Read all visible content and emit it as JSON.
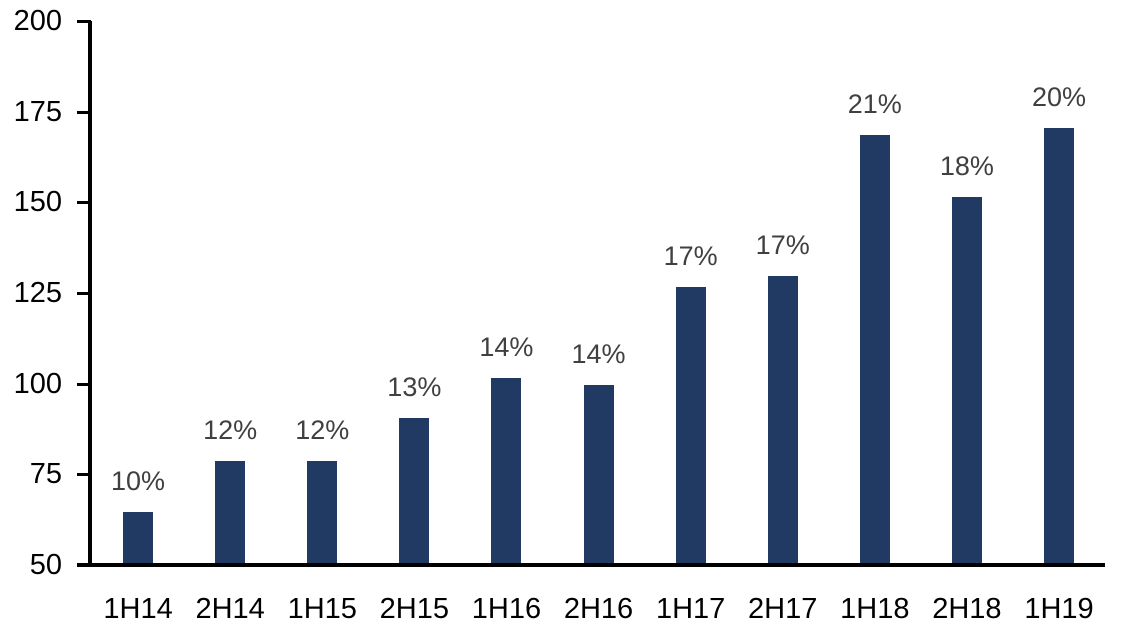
{
  "chart_data": {
    "type": "bar",
    "title": "",
    "xlabel": "",
    "ylabel": "",
    "categories": [
      "1H14",
      "2H14",
      "1H15",
      "2H15",
      "1H16",
      "2H16",
      "1H17",
      "2H17",
      "1H18",
      "2H18",
      "1H19"
    ],
    "values": [
      64,
      78,
      78,
      90,
      101,
      99,
      126,
      129,
      168,
      151,
      170
    ],
    "bar_labels": [
      "10%",
      "12%",
      "12%",
      "13%",
      "14%",
      "14%",
      "17%",
      "17%",
      "21%",
      "18%",
      "20%"
    ],
    "ylim": [
      50,
      200
    ],
    "yticks": [
      50,
      75,
      100,
      125,
      150,
      175,
      200
    ],
    "grid": false,
    "legend_position": "none",
    "colors": {
      "bar": "#213A64",
      "bar_label": "#404040",
      "axis": "#000000",
      "tick_label": "#000000",
      "background": "#FFFFFF"
    }
  }
}
